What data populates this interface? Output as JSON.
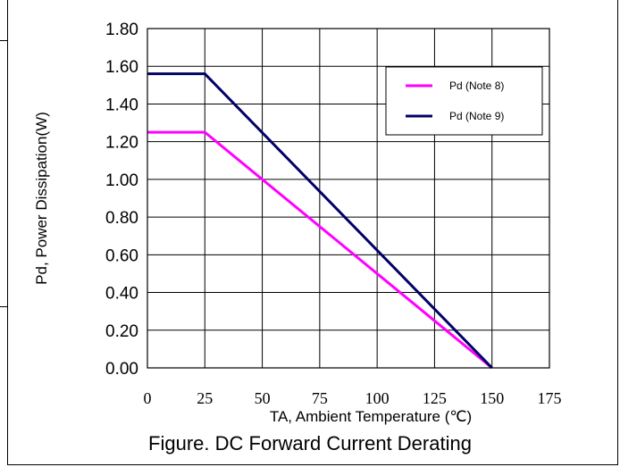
{
  "chart_data": {
    "type": "line",
    "title": "Figure. DC Forward Current Derating",
    "xlabel": "TA, Ambient Temperature (℃)",
    "ylabel": "Pd, Power Dissipation(W)",
    "xlim": [
      0,
      175
    ],
    "ylim": [
      0,
      1.8
    ],
    "x_ticks": [
      "0",
      "25",
      "50",
      "75",
      "100",
      "125",
      "150",
      "175"
    ],
    "y_ticks": [
      "0.00",
      "0.20",
      "0.40",
      "0.60",
      "0.80",
      "1.00",
      "1.20",
      "1.40",
      "1.60",
      "1.80"
    ],
    "grid": true,
    "legend_position": "top-right",
    "series": [
      {
        "name": "Pd (Note 8)",
        "color": "#ff00ff",
        "x": [
          0,
          25,
          150
        ],
        "y": [
          1.25,
          1.25,
          0
        ]
      },
      {
        "name": "Pd (Note 9)",
        "color": "#000066",
        "x": [
          0,
          25,
          150
        ],
        "y": [
          1.56,
          1.56,
          0
        ]
      }
    ]
  }
}
